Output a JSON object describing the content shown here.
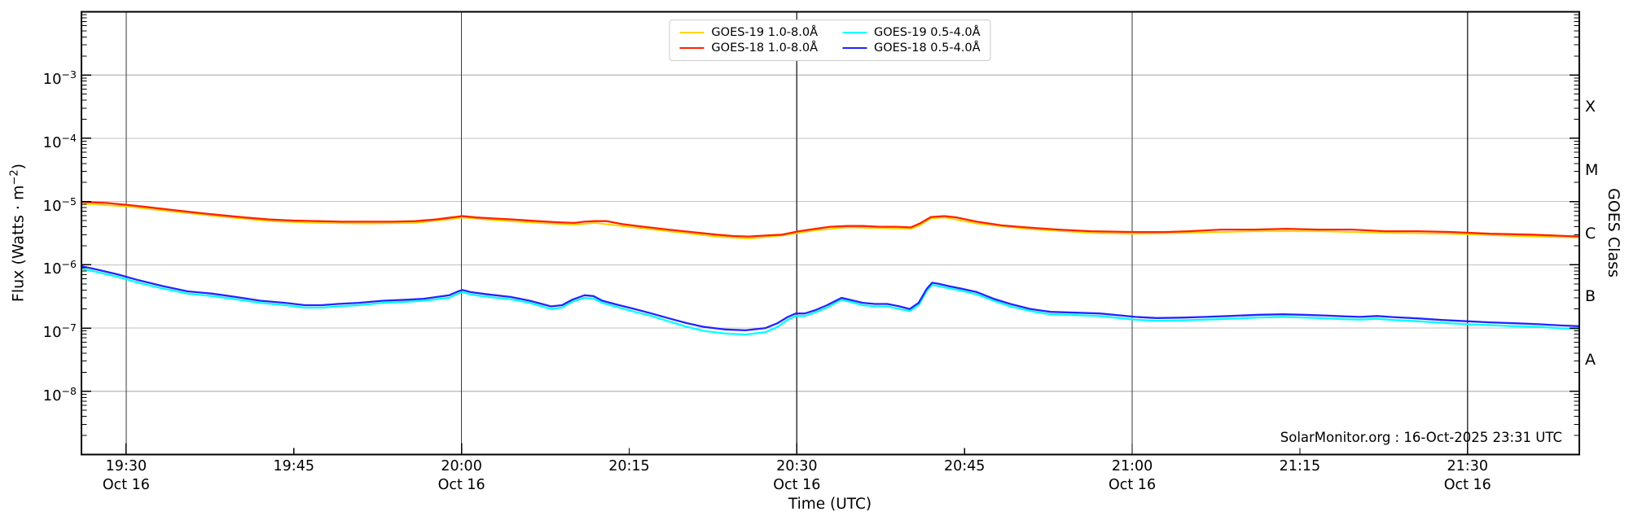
{
  "figure": {
    "watermark": "SolarMonitor.org : 16-Oct-2025 23:31 UTC"
  },
  "axes": {
    "x_title": "Time (UTC)",
    "y_left_title_prefix": "Flux (Watts · m",
    "y_left_title_sup": "−2",
    "y_left_title_suffix": ")",
    "y_right_title": "GOES Class"
  },
  "chart_data": {
    "type": "line",
    "title": "",
    "xlabel": "Time (UTC)",
    "ylabel": "Flux (Watts · m^-2)",
    "ylabel_right": "GOES Class",
    "y_scale": "log",
    "ylim": [
      1e-09,
      0.01
    ],
    "x_unit": "minutes after 19:00 UTC on Oct 16",
    "xlim": [
      26,
      160
    ],
    "grid": {
      "horizontal_color": "#c2c2c2",
      "vertical_color": "#3a3a3a"
    },
    "legend_position": "upper center",
    "legend_order": [
      0,
      2,
      1,
      3
    ],
    "x_ticks": [
      {
        "t": 30,
        "label": "19:30",
        "date": "Oct 16",
        "grid": true
      },
      {
        "t": 45,
        "label": "19:45",
        "grid": false
      },
      {
        "t": 60,
        "label": "20:00",
        "date": "Oct 16",
        "grid": true
      },
      {
        "t": 75,
        "label": "20:15",
        "grid": false
      },
      {
        "t": 90,
        "label": "20:30",
        "date": "Oct 16",
        "grid": true
      },
      {
        "t": 105,
        "label": "20:45",
        "grid": false
      },
      {
        "t": 120,
        "label": "21:00",
        "date": "Oct 16",
        "grid": true
      },
      {
        "t": 135,
        "label": "21:15",
        "grid": false
      },
      {
        "t": 150,
        "label": "21:30",
        "date": "Oct 16",
        "grid": true
      }
    ],
    "y_tick_exponents": [
      -3,
      -4,
      -5,
      -6,
      -7,
      -8
    ],
    "goes_classes": [
      {
        "label": "X",
        "center_exp": -3.5
      },
      {
        "label": "M",
        "center_exp": -4.5
      },
      {
        "label": "C",
        "center_exp": -5.5
      },
      {
        "label": "B",
        "center_exp": -6.5
      },
      {
        "label": "A",
        "center_exp": -7.5
      }
    ],
    "series": [
      {
        "name": "GOES-19 1.0-8.0Å",
        "color": "#ffd400",
        "width": 2.0,
        "t": [
          26,
          30,
          34,
          38.4,
          42.8,
          47.1,
          51.5,
          55.9,
          59.1,
          60.1,
          62.8,
          66.8,
          70.1,
          71.9,
          74.4,
          78.5,
          82.8,
          85.7,
          88.7,
          91.6,
          94.5,
          97.4,
          100.2,
          101,
          102,
          103.2,
          106.1,
          110.5,
          116.3,
          120.3,
          125.1,
          130.9,
          136.7,
          142.6,
          148.6,
          155.7,
          160
        ],
        "flux": [
          9.2e-06,
          8.4e-06,
          7e-06,
          5.8e-06,
          4.9e-06,
          4.6e-06,
          4.5e-06,
          4.6e-06,
          5.3e-06,
          5.6e-06,
          5.1e-06,
          4.6e-06,
          4.3e-06,
          4.6e-06,
          4.1e-06,
          3.4e-06,
          2.8e-06,
          2.6e-06,
          2.9e-06,
          3.5e-06,
          3.9e-06,
          3.8e-06,
          3.7e-06,
          4.2e-06,
          5.4e-06,
          5.6e-06,
          4.5e-06,
          3.7e-06,
          3.2e-06,
          3.1e-06,
          3.2e-06,
          3.4e-06,
          3.4e-06,
          3.2e-06,
          3.1e-06,
          2.8e-06,
          2.7e-06
        ]
      },
      {
        "name": "GOES-18 1.0-8.0Å",
        "color": "#ff2200",
        "width": 2.3,
        "t": [
          26,
          28.2,
          30,
          31.8,
          34,
          36.2,
          38.4,
          40.6,
          42.8,
          44.9,
          47.1,
          49.3,
          51.5,
          53.7,
          55.9,
          57.7,
          59.1,
          60.1,
          61.3,
          62.8,
          64.6,
          66.8,
          68.6,
          70.1,
          71,
          71.9,
          73,
          74.4,
          76.3,
          78.5,
          80.6,
          82.8,
          84.3,
          85.7,
          87.2,
          88.7,
          90.2,
          91.6,
          93,
          94.5,
          95.9,
          97.4,
          98.9,
          100.2,
          101,
          102,
          103.2,
          104.3,
          106.1,
          108.3,
          110.5,
          113.4,
          116.3,
          120.3,
          122.9,
          125.1,
          128,
          130.9,
          133.8,
          136.7,
          139.7,
          142.6,
          145.5,
          148.6,
          152,
          155.7,
          160
        ],
        "flux": [
          9.9e-06,
          9.5e-06,
          8.9e-06,
          8.2e-06,
          7.4e-06,
          6.7e-06,
          6.1e-06,
          5.6e-06,
          5.2e-06,
          5e-06,
          4.9e-06,
          4.8e-06,
          4.8e-06,
          4.8e-06,
          4.9e-06,
          5.2e-06,
          5.6e-06,
          5.9e-06,
          5.6e-06,
          5.4e-06,
          5.2e-06,
          4.9e-06,
          4.7e-06,
          4.6e-06,
          4.8e-06,
          4.9e-06,
          4.9e-06,
          4.4e-06,
          4e-06,
          3.6e-06,
          3.3e-06,
          3e-06,
          2.85e-06,
          2.8e-06,
          2.9e-06,
          3e-06,
          3.4e-06,
          3.7e-06,
          4e-06,
          4.1e-06,
          4.1e-06,
          4e-06,
          4e-06,
          3.9e-06,
          4.5e-06,
          5.7e-06,
          5.9e-06,
          5.6e-06,
          4.8e-06,
          4.2e-06,
          3.9e-06,
          3.6e-06,
          3.4e-06,
          3.3e-06,
          3.3e-06,
          3.4e-06,
          3.6e-06,
          3.6e-06,
          3.7e-06,
          3.6e-06,
          3.6e-06,
          3.4e-06,
          3.4e-06,
          3.3e-06,
          3.1e-06,
          3e-06,
          2.8e-06
        ]
      },
      {
        "name": "GOES-19 0.5-4.0Å",
        "color": "#00ffff",
        "width": 2.3,
        "t": [
          26,
          27.4,
          29.3,
          31.1,
          33.3,
          35.5,
          37.7,
          39.8,
          42,
          44.2,
          46,
          47.5,
          48.9,
          50.8,
          53,
          55.1,
          56.6,
          57.8,
          58.9,
          59.7,
          60.1,
          60.8,
          62.4,
          64.4,
          66.1,
          67.2,
          68,
          69,
          69.9,
          71,
          71.8,
          72.6,
          74.1,
          75.5,
          77,
          78.7,
          80.1,
          81.7,
          83.6,
          85.4,
          87.2,
          88.3,
          89.2,
          89.9,
          90.7,
          91.6,
          92.7,
          94,
          95.1,
          95.9,
          97,
          98.1,
          99.2,
          100.1,
          100.9,
          101.6,
          102.1,
          102.7,
          103.6,
          104.7,
          106.1,
          107.6,
          109.1,
          110.9,
          112.7,
          114.9,
          117.1,
          120.3,
          122.2,
          124.4,
          126.6,
          128.7,
          131.3,
          133.5,
          135.3,
          137.1,
          138.9,
          140.4,
          141.9,
          143.3,
          145.5,
          147.7,
          149.9,
          152,
          154.2,
          156.4,
          158.3,
          160
        ],
        "flux": [
          8.7e-07,
          7.7e-07,
          6.4e-07,
          5.2e-07,
          4.2e-07,
          3.5e-07,
          3.2e-07,
          2.85e-07,
          2.5e-07,
          2.3e-07,
          2.1e-07,
          2.1e-07,
          2.2e-07,
          2.3e-07,
          2.5e-07,
          2.6e-07,
          2.7e-07,
          2.85e-07,
          3e-07,
          3.5e-07,
          3.7e-07,
          3.4e-07,
          3.1e-07,
          2.85e-07,
          2.5e-07,
          2.2e-07,
          2e-07,
          2.1e-07,
          2.6e-07,
          3e-07,
          2.9e-07,
          2.5e-07,
          2.1e-07,
          1.8e-07,
          1.55e-07,
          1.25e-07,
          1.05e-07,
          9e-08,
          8.2e-08,
          7.9e-08,
          8.6e-08,
          1.05e-07,
          1.35e-07,
          1.55e-07,
          1.55e-07,
          1.75e-07,
          2.1e-07,
          2.8e-07,
          2.5e-07,
          2.3e-07,
          2.2e-07,
          2.2e-07,
          2e-07,
          1.85e-07,
          2.3e-07,
          3.8e-07,
          4.8e-07,
          4.6e-07,
          4.25e-07,
          3.9e-07,
          3.4e-07,
          2.7e-07,
          2.2e-07,
          1.85e-07,
          1.65e-07,
          1.6e-07,
          1.55e-07,
          1.35e-07,
          1.3e-07,
          1.32e-07,
          1.36e-07,
          1.4e-07,
          1.47e-07,
          1.5e-07,
          1.47e-07,
          1.43e-07,
          1.38e-07,
          1.36e-07,
          1.4e-07,
          1.34e-07,
          1.28e-07,
          1.21e-07,
          1.15e-07,
          1.11e-07,
          1.07e-07,
          1.04e-07,
          9.9e-08,
          9.6e-08
        ]
      },
      {
        "name": "GOES-18 0.5-4.0Å",
        "color": "#2323ff",
        "width": 2.3,
        "t": [
          26,
          27.4,
          29.3,
          31.1,
          33.3,
          35.5,
          37.7,
          39.8,
          42,
          44.2,
          46,
          47.5,
          48.9,
          50.8,
          53,
          55.1,
          56.6,
          57.8,
          58.9,
          59.7,
          60.1,
          60.8,
          62.4,
          64.4,
          66.1,
          67.2,
          68,
          69,
          69.9,
          71,
          71.8,
          72.6,
          74.1,
          75.5,
          77,
          78.7,
          80.1,
          81.7,
          83.6,
          85.4,
          87.2,
          88.3,
          89.2,
          89.9,
          90.7,
          91.6,
          92.7,
          94,
          95.1,
          95.9,
          97,
          98.1,
          99.2,
          100.1,
          100.9,
          101.6,
          102.1,
          102.7,
          103.6,
          104.7,
          106.1,
          107.6,
          109.1,
          110.9,
          112.7,
          114.9,
          117.1,
          120.3,
          122.2,
          124.4,
          126.6,
          128.7,
          131.3,
          133.5,
          135.3,
          137.1,
          138.9,
          140.4,
          141.9,
          143.3,
          145.5,
          147.7,
          149.9,
          152,
          154.2,
          156.4,
          158.3,
          160
        ],
        "flux": [
          9.5e-07,
          8.4e-07,
          7e-07,
          5.7e-07,
          4.6e-07,
          3.8e-07,
          3.5e-07,
          3.1e-07,
          2.7e-07,
          2.5e-07,
          2.3e-07,
          2.3e-07,
          2.4e-07,
          2.5e-07,
          2.7e-07,
          2.8e-07,
          2.9e-07,
          3.1e-07,
          3.3e-07,
          3.8e-07,
          4e-07,
          3.7e-07,
          3.4e-07,
          3.1e-07,
          2.7e-07,
          2.4e-07,
          2.2e-07,
          2.3e-07,
          2.8e-07,
          3.3e-07,
          3.2e-07,
          2.7e-07,
          2.3e-07,
          2e-07,
          1.7e-07,
          1.4e-07,
          1.2e-07,
          1.04e-07,
          9.5e-08,
          9.2e-08,
          1e-07,
          1.2e-07,
          1.5e-07,
          1.7e-07,
          1.7e-07,
          1.9e-07,
          2.3e-07,
          3e-07,
          2.7e-07,
          2.5e-07,
          2.4e-07,
          2.4e-07,
          2.2e-07,
          2e-07,
          2.5e-07,
          4.1e-07,
          5.2e-07,
          5e-07,
          4.6e-07,
          4.2e-07,
          3.7e-07,
          2.9e-07,
          2.4e-07,
          2e-07,
          1.8e-07,
          1.75e-07,
          1.7e-07,
          1.5e-07,
          1.44e-07,
          1.46e-07,
          1.5e-07,
          1.55e-07,
          1.62e-07,
          1.65e-07,
          1.62e-07,
          1.58e-07,
          1.53e-07,
          1.5e-07,
          1.55e-07,
          1.49e-07,
          1.42e-07,
          1.34e-07,
          1.28e-07,
          1.23e-07,
          1.19e-07,
          1.15e-07,
          1.1e-07,
          1.07e-07
        ]
      }
    ]
  }
}
